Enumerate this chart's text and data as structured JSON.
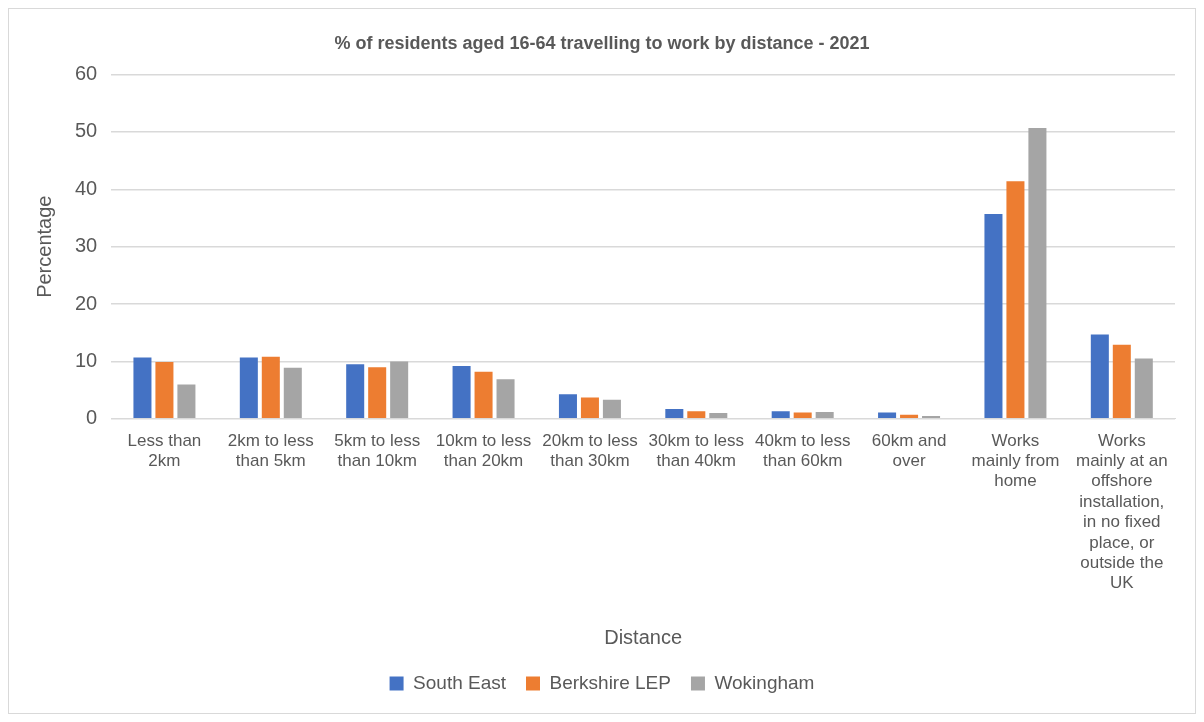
{
  "chart_data": {
    "type": "bar",
    "title": "% of residents aged 16-64 travelling to work by distance - 2021",
    "xlabel": "Distance",
    "ylabel": "Percentage",
    "categories": [
      "Less than 2km",
      "2km to less than 5km",
      "5km to less than 10km",
      "10km to less than 20km",
      "20km to less than 30km",
      "30km to less than 40km",
      "40km to less than 60km",
      "60km and over",
      "Works mainly from home",
      "Works mainly at an offshore installation, in no fixed place, or outside the UK"
    ],
    "series": [
      {
        "name": "South East",
        "color": "#4472c4",
        "values": [
          10.7,
          10.7,
          9.5,
          9.2,
          4.3,
          1.7,
          1.3,
          1.1,
          35.7,
          14.7
        ]
      },
      {
        "name": "Berkshire LEP",
        "color": "#ed7d31",
        "values": [
          9.9,
          10.8,
          9.0,
          8.2,
          3.7,
          1.3,
          1.1,
          0.7,
          41.4,
          12.9
        ]
      },
      {
        "name": "Wokingham",
        "color": "#a5a5a5",
        "values": [
          6.0,
          8.9,
          10.0,
          6.9,
          3.3,
          1.0,
          1.2,
          0.5,
          50.7,
          10.5
        ]
      }
    ],
    "ylim": [
      0,
      60
    ],
    "yticks": [
      0,
      10,
      20,
      30,
      40,
      50,
      60
    ],
    "grid": "y",
    "legend": "bottom"
  }
}
